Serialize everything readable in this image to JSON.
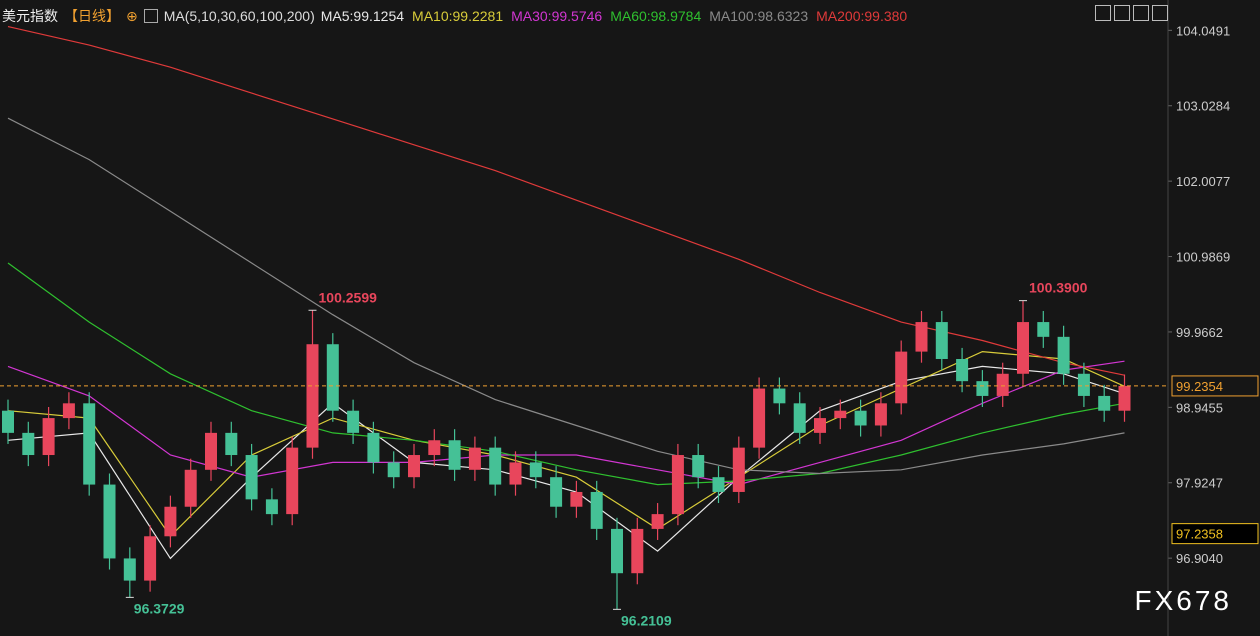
{
  "chart_data": {
    "type": "candlestick",
    "title": "美元指数",
    "period": "【日线】",
    "add_icon": "⊕",
    "indicator": "MA(5,10,30,60,100,200)",
    "watermark": "FX678",
    "up_color": "#e8465c",
    "down_color": "#45c196",
    "ylim": [
      95.85,
      104.46
    ],
    "yticks": [
      104.0491,
      103.0284,
      102.0077,
      100.9869,
      99.9662,
      98.9455,
      97.9247,
      {
        "value": 96.904,
        "label": "96.9040"
      }
    ],
    "open": [
      98.9,
      98.6,
      98.3,
      98.8,
      99.0,
      97.9,
      96.9,
      96.6,
      97.2,
      97.6,
      98.1,
      98.6,
      98.3,
      97.7,
      97.5,
      98.4,
      99.8,
      98.9,
      98.6,
      98.2,
      98.0,
      98.3,
      98.5,
      98.1,
      98.4,
      97.9,
      98.2,
      98.0,
      97.6,
      97.8,
      97.3,
      96.7,
      97.3,
      97.5,
      98.3,
      98.0,
      97.8,
      98.4,
      99.2,
      99.0,
      98.6,
      98.8,
      98.9,
      98.7,
      99.0,
      99.7,
      100.1,
      99.6,
      99.3,
      99.1,
      99.4,
      100.1,
      99.9,
      99.4,
      99.1,
      98.9
    ],
    "high": [
      99.05,
      98.75,
      98.95,
      99.15,
      99.15,
      98.05,
      97.05,
      97.35,
      97.75,
      98.25,
      98.75,
      98.75,
      98.45,
      97.85,
      98.55,
      100.2599,
      99.95,
      99.05,
      98.75,
      98.35,
      98.45,
      98.65,
      98.65,
      98.55,
      98.55,
      98.35,
      98.35,
      98.15,
      97.95,
      97.95,
      97.45,
      97.45,
      97.65,
      98.45,
      98.45,
      98.15,
      98.55,
      99.35,
      99.35,
      99.15,
      98.95,
      99.05,
      99.05,
      99.15,
      99.85,
      100.25,
      100.25,
      99.75,
      99.45,
      99.55,
      100.39,
      100.25,
      100.05,
      99.55,
      99.25,
      99.39
    ],
    "low": [
      98.45,
      98.15,
      98.15,
      98.65,
      97.75,
      96.75,
      96.3729,
      96.45,
      97.05,
      97.45,
      97.95,
      98.15,
      97.55,
      97.35,
      97.35,
      98.25,
      98.75,
      98.45,
      98.05,
      97.85,
      97.85,
      98.15,
      97.95,
      97.95,
      97.75,
      97.75,
      97.85,
      97.45,
      97.45,
      97.15,
      96.2109,
      96.55,
      97.15,
      97.35,
      97.85,
      97.65,
      97.65,
      98.25,
      98.85,
      98.45,
      98.45,
      98.65,
      98.55,
      98.55,
      98.85,
      99.55,
      99.45,
      99.15,
      98.95,
      98.95,
      99.25,
      99.75,
      99.25,
      98.95,
      98.75,
      98.75
    ],
    "close": [
      98.6,
      98.3,
      98.8,
      99.0,
      97.9,
      96.9,
      96.6,
      97.2,
      97.6,
      98.1,
      98.6,
      98.3,
      97.7,
      97.5,
      98.4,
      99.8,
      98.9,
      98.6,
      98.2,
      98.0,
      98.3,
      98.5,
      98.1,
      98.4,
      97.9,
      98.2,
      98.0,
      97.6,
      97.8,
      97.3,
      96.7,
      97.3,
      97.5,
      98.3,
      98.0,
      97.8,
      98.4,
      99.2,
      99.0,
      98.6,
      98.8,
      98.9,
      98.7,
      99.0,
      99.7,
      100.1,
      99.6,
      99.3,
      99.1,
      99.4,
      100.1,
      99.9,
      99.4,
      99.1,
      98.9,
      99.2354
    ],
    "series": [
      {
        "name": "MA5:99.1254",
        "color": "#e8e8e8",
        "x": [
          0,
          4,
          8,
          12,
          16,
          20,
          24,
          28,
          32,
          36,
          40,
          44,
          48,
          52,
          55
        ],
        "values": [
          98.5,
          98.6,
          96.9,
          98.0,
          99.0,
          98.2,
          98.1,
          97.8,
          97.0,
          98.0,
          98.9,
          99.3,
          99.5,
          99.4,
          99.13
        ]
      },
      {
        "name": "MA10:99.2281",
        "color": "#d8cc3a",
        "x": [
          0,
          4,
          8,
          12,
          16,
          20,
          24,
          28,
          32,
          36,
          40,
          44,
          48,
          52,
          55
        ],
        "values": [
          98.9,
          98.8,
          97.2,
          98.3,
          98.8,
          98.5,
          98.3,
          98.0,
          97.3,
          98.0,
          98.7,
          99.2,
          99.7,
          99.6,
          99.23
        ]
      },
      {
        "name": "MA30:99.5746",
        "color": "#d236d2",
        "x": [
          0,
          4,
          8,
          12,
          16,
          20,
          24,
          28,
          32,
          36,
          40,
          44,
          48,
          52,
          55
        ],
        "values": [
          99.5,
          99.1,
          98.3,
          98.0,
          98.2,
          98.2,
          98.3,
          98.3,
          98.1,
          97.9,
          98.2,
          98.5,
          99.0,
          99.45,
          99.57
        ]
      },
      {
        "name": "MA60:98.9784",
        "color": "#2fc02f",
        "x": [
          0,
          4,
          8,
          12,
          16,
          20,
          24,
          28,
          32,
          36,
          40,
          44,
          48,
          52,
          55
        ],
        "values": [
          100.9,
          100.1,
          99.4,
          98.9,
          98.6,
          98.5,
          98.35,
          98.1,
          97.9,
          97.95,
          98.05,
          98.3,
          98.6,
          98.85,
          99.0
        ]
      },
      {
        "name": "MA100:98.6323",
        "color": "#8a8a8a",
        "x": [
          0,
          4,
          8,
          12,
          16,
          20,
          24,
          28,
          32,
          36,
          40,
          44,
          48,
          52,
          55
        ],
        "values": [
          102.86,
          102.3,
          101.6,
          100.9,
          100.2,
          99.55,
          99.05,
          98.7,
          98.35,
          98.1,
          98.05,
          98.1,
          98.3,
          98.45,
          98.6
        ]
      },
      {
        "name": "MA200:99.380",
        "color": "#e03a3a",
        "x": [
          0,
          4,
          8,
          12,
          16,
          20,
          24,
          28,
          32,
          36,
          40,
          44,
          48,
          52,
          55
        ],
        "values": [
          104.1,
          103.85,
          103.55,
          103.2,
          102.85,
          102.5,
          102.15,
          101.75,
          101.35,
          100.95,
          100.5,
          100.1,
          99.85,
          99.55,
          99.38
        ]
      }
    ],
    "annotations": [
      {
        "text": "100.2599",
        "value": 100.2599
      },
      {
        "text": "96.3729",
        "value": 96.3729
      },
      {
        "text": "96.2109",
        "value": 96.2109
      },
      {
        "text": "100.3900",
        "value": 100.39
      }
    ],
    "price_markers": [
      {
        "value": 99.2354,
        "color": "#f0a030"
      },
      {
        "value": 97.2358,
        "color": "#f0c020"
      }
    ]
  }
}
